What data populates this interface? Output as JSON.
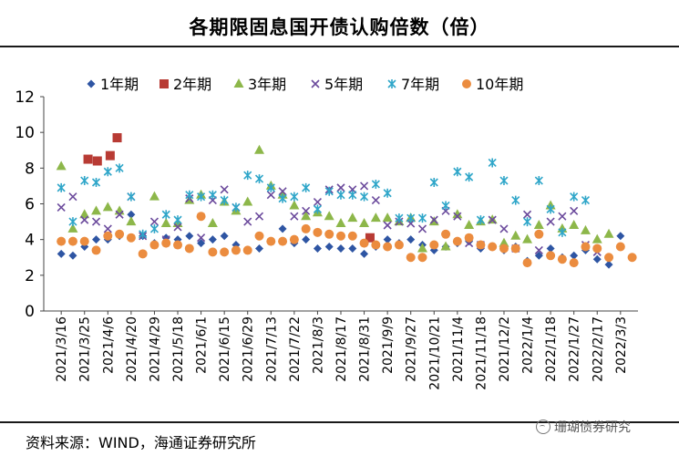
{
  "title": "各期限固息国开债认购倍数（倍）",
  "source": "资料来源：WIND，海通证券研究所",
  "watermark": "珊瑚债券研究",
  "chart_data": {
    "type": "scatter",
    "title": "各期限固息国开债认购倍数（倍）",
    "ylim": [
      0,
      12
    ],
    "yticks": [
      0,
      2,
      4,
      6,
      8,
      10,
      12
    ],
    "x_index_range": [
      0,
      50
    ],
    "x_tick_labels": [
      {
        "i": 1,
        "label": "2021/3/16"
      },
      {
        "i": 3,
        "label": "2021/3/25"
      },
      {
        "i": 5,
        "label": "2021/4/6"
      },
      {
        "i": 7,
        "label": "2021/4/20"
      },
      {
        "i": 9,
        "label": "2021/4/29"
      },
      {
        "i": 11,
        "label": "2021/5/18"
      },
      {
        "i": 13,
        "label": "2021/6/1"
      },
      {
        "i": 15,
        "label": "2021/6/15"
      },
      {
        "i": 17,
        "label": "2021/6/29"
      },
      {
        "i": 19,
        "label": "2021/7/13"
      },
      {
        "i": 21,
        "label": "2021/7/22"
      },
      {
        "i": 23,
        "label": "2021/8/3"
      },
      {
        "i": 25,
        "label": "2021/8/17"
      },
      {
        "i": 27,
        "label": "2021/8/31"
      },
      {
        "i": 29,
        "label": "2021/9/9"
      },
      {
        "i": 31,
        "label": "2021/9/27"
      },
      {
        "i": 33,
        "label": "2021/10/21"
      },
      {
        "i": 35,
        "label": "2021/11/4"
      },
      {
        "i": 37,
        "label": "2021/11/18"
      },
      {
        "i": 39,
        "label": "2021/12/2"
      },
      {
        "i": 41,
        "label": "2022/1/4"
      },
      {
        "i": 43,
        "label": "2022/1/18"
      },
      {
        "i": 45,
        "label": "2022/1/27"
      },
      {
        "i": 47,
        "label": "2022/2/17"
      },
      {
        "i": 49,
        "label": "2022/3/3"
      }
    ],
    "series": [
      {
        "name": "1年期",
        "color": "#2E55A3",
        "marker": "diamond",
        "points": [
          [
            1,
            3.2
          ],
          [
            2,
            3.1
          ],
          [
            3,
            3.6
          ],
          [
            4,
            4.0
          ],
          [
            5,
            4.0
          ],
          [
            6,
            4.2
          ],
          [
            7,
            5.4
          ],
          [
            8,
            4.2
          ],
          [
            9,
            3.8
          ],
          [
            10,
            4.1
          ],
          [
            11,
            4.0
          ],
          [
            12,
            4.2
          ],
          [
            13,
            3.8
          ],
          [
            14,
            4.0
          ],
          [
            15,
            4.2
          ],
          [
            16,
            3.7
          ],
          [
            17,
            3.4
          ],
          [
            18,
            3.5
          ],
          [
            19,
            3.9
          ],
          [
            20,
            4.6
          ],
          [
            21,
            3.8
          ],
          [
            22,
            4.0
          ],
          [
            23,
            3.5
          ],
          [
            24,
            3.6
          ],
          [
            25,
            3.5
          ],
          [
            26,
            3.5
          ],
          [
            27,
            3.2
          ],
          [
            28,
            3.6
          ],
          [
            29,
            4.0
          ],
          [
            30,
            3.8
          ],
          [
            31,
            4.0
          ],
          [
            32,
            3.7
          ],
          [
            33,
            3.4
          ],
          [
            34,
            3.6
          ],
          [
            35,
            3.8
          ],
          [
            36,
            3.9
          ],
          [
            37,
            3.5
          ],
          [
            38,
            3.6
          ],
          [
            39,
            3.4
          ],
          [
            40,
            3.6
          ],
          [
            41,
            2.8
          ],
          [
            42,
            3.1
          ],
          [
            43,
            3.5
          ],
          [
            44,
            3.0
          ],
          [
            45,
            3.1
          ],
          [
            46,
            3.4
          ],
          [
            47,
            2.9
          ],
          [
            48,
            2.6
          ],
          [
            49,
            4.2
          ]
        ]
      },
      {
        "name": "2年期",
        "color": "#B83B34",
        "marker": "square",
        "points": [
          [
            3.3,
            8.5
          ],
          [
            4.1,
            8.4
          ],
          [
            5.2,
            8.7
          ],
          [
            5.8,
            9.7
          ],
          [
            27.5,
            4.1
          ]
        ]
      },
      {
        "name": "3年期",
        "color": "#8DB74A",
        "marker": "triangle",
        "points": [
          [
            1,
            8.1
          ],
          [
            2,
            4.6
          ],
          [
            3,
            5.4
          ],
          [
            4,
            5.6
          ],
          [
            5,
            5.8
          ],
          [
            6,
            5.6
          ],
          [
            7,
            5.0
          ],
          [
            9,
            6.4
          ],
          [
            10,
            4.9
          ],
          [
            11,
            4.9
          ],
          [
            12,
            6.2
          ],
          [
            13,
            6.5
          ],
          [
            14,
            4.9
          ],
          [
            15,
            6.1
          ],
          [
            16,
            5.6
          ],
          [
            17,
            6.1
          ],
          [
            18,
            9.0
          ],
          [
            19,
            7.0
          ],
          [
            20,
            6.5
          ],
          [
            21,
            5.9
          ],
          [
            22,
            5.3
          ],
          [
            23,
            5.5
          ],
          [
            24,
            5.3
          ],
          [
            25,
            4.9
          ],
          [
            26,
            5.2
          ],
          [
            27,
            4.9
          ],
          [
            28,
            5.2
          ],
          [
            29,
            5.2
          ],
          [
            30,
            5.0
          ],
          [
            31,
            5.2
          ],
          [
            32,
            3.5
          ],
          [
            33,
            5.0
          ],
          [
            34,
            3.6
          ],
          [
            35,
            5.4
          ],
          [
            36,
            4.8
          ],
          [
            37,
            5.0
          ],
          [
            38,
            5.1
          ],
          [
            39,
            3.8
          ],
          [
            40,
            4.2
          ],
          [
            41,
            4.0
          ],
          [
            42,
            4.8
          ],
          [
            43,
            5.9
          ],
          [
            44,
            4.6
          ],
          [
            45,
            4.8
          ],
          [
            46,
            4.5
          ],
          [
            47,
            4.0
          ],
          [
            48,
            4.3
          ]
        ]
      },
      {
        "name": "5年期",
        "color": "#6B4A9C",
        "marker": "x",
        "points": [
          [
            1,
            5.8
          ],
          [
            2,
            6.4
          ],
          [
            3,
            5.1
          ],
          [
            4,
            5.0
          ],
          [
            5,
            4.6
          ],
          [
            6,
            5.4
          ],
          [
            7,
            6.4
          ],
          [
            8,
            4.2
          ],
          [
            9,
            5.0
          ],
          [
            10,
            4.0
          ],
          [
            11,
            4.7
          ],
          [
            12,
            6.3
          ],
          [
            13,
            4.1
          ],
          [
            14,
            6.2
          ],
          [
            15,
            6.8
          ],
          [
            16,
            5.8
          ],
          [
            17,
            5.0
          ],
          [
            18,
            5.3
          ],
          [
            19,
            6.5
          ],
          [
            20,
            6.7
          ],
          [
            21,
            5.3
          ],
          [
            22,
            5.6
          ],
          [
            23,
            6.1
          ],
          [
            24,
            6.8
          ],
          [
            25,
            6.9
          ],
          [
            26,
            6.8
          ],
          [
            27,
            7.0
          ],
          [
            28,
            6.2
          ],
          [
            29,
            4.8
          ],
          [
            30,
            5.0
          ],
          [
            31,
            4.9
          ],
          [
            32,
            4.6
          ],
          [
            33,
            5.1
          ],
          [
            34,
            5.6
          ],
          [
            35,
            5.3
          ],
          [
            36,
            3.8
          ],
          [
            37,
            3.7
          ],
          [
            38,
            5.1
          ],
          [
            39,
            4.6
          ],
          [
            40,
            3.5
          ],
          [
            41,
            5.4
          ],
          [
            42,
            3.4
          ],
          [
            43,
            5.0
          ],
          [
            44,
            5.3
          ],
          [
            45,
            5.6
          ],
          [
            46,
            3.7
          ],
          [
            47,
            3.3
          ]
        ]
      },
      {
        "name": "7年期",
        "color": "#2FA6C9",
        "marker": "star",
        "points": [
          [
            1,
            6.9
          ],
          [
            2,
            5.0
          ],
          [
            3,
            7.3
          ],
          [
            4,
            7.2
          ],
          [
            5,
            7.8
          ],
          [
            6,
            8.0
          ],
          [
            7,
            6.4
          ],
          [
            8,
            4.3
          ],
          [
            9,
            4.6
          ],
          [
            10,
            5.4
          ],
          [
            11,
            5.1
          ],
          [
            12,
            6.5
          ],
          [
            13,
            6.4
          ],
          [
            14,
            6.5
          ],
          [
            15,
            6.2
          ],
          [
            16,
            5.8
          ],
          [
            17,
            7.6
          ],
          [
            18,
            7.4
          ],
          [
            19,
            6.9
          ],
          [
            20,
            6.3
          ],
          [
            21,
            6.4
          ],
          [
            22,
            6.9
          ],
          [
            23,
            5.7
          ],
          [
            24,
            6.7
          ],
          [
            25,
            6.5
          ],
          [
            26,
            6.5
          ],
          [
            27,
            6.4
          ],
          [
            28,
            7.1
          ],
          [
            29,
            6.6
          ],
          [
            30,
            5.2
          ],
          [
            31,
            5.2
          ],
          [
            32,
            5.2
          ],
          [
            33,
            7.2
          ],
          [
            34,
            5.9
          ],
          [
            35,
            7.8
          ],
          [
            36,
            7.5
          ],
          [
            37,
            5.1
          ],
          [
            38,
            8.3
          ],
          [
            39,
            7.3
          ],
          [
            40,
            6.2
          ],
          [
            41,
            5.0
          ],
          [
            42,
            7.3
          ],
          [
            43,
            5.7
          ],
          [
            44,
            4.4
          ],
          [
            45,
            6.4
          ],
          [
            46,
            6.2
          ]
        ]
      },
      {
        "name": "10年期",
        "color": "#EB8C3F",
        "marker": "circle",
        "points": [
          [
            1,
            3.9
          ],
          [
            2,
            3.9
          ],
          [
            3,
            3.9
          ],
          [
            4,
            3.4
          ],
          [
            5,
            4.2
          ],
          [
            6,
            4.3
          ],
          [
            7,
            4.1
          ],
          [
            8,
            3.2
          ],
          [
            9,
            3.7
          ],
          [
            10,
            3.8
          ],
          [
            11,
            3.7
          ],
          [
            12,
            3.5
          ],
          [
            13,
            5.3
          ],
          [
            14,
            3.3
          ],
          [
            15,
            3.3
          ],
          [
            16,
            3.4
          ],
          [
            17,
            3.4
          ],
          [
            18,
            4.2
          ],
          [
            19,
            3.9
          ],
          [
            20,
            3.9
          ],
          [
            21,
            4.0
          ],
          [
            22,
            4.6
          ],
          [
            23,
            4.4
          ],
          [
            24,
            4.3
          ],
          [
            25,
            4.2
          ],
          [
            26,
            4.2
          ],
          [
            27,
            3.8
          ],
          [
            28,
            3.7
          ],
          [
            29,
            3.6
          ],
          [
            30,
            3.7
          ],
          [
            31,
            3.0
          ],
          [
            32,
            3.0
          ],
          [
            33,
            3.7
          ],
          [
            34,
            4.3
          ],
          [
            35,
            3.9
          ],
          [
            36,
            4.1
          ],
          [
            37,
            3.7
          ],
          [
            38,
            3.6
          ],
          [
            39,
            3.5
          ],
          [
            40,
            3.5
          ],
          [
            41,
            2.7
          ],
          [
            42,
            4.3
          ],
          [
            43,
            3.1
          ],
          [
            44,
            2.9
          ],
          [
            45,
            2.7
          ],
          [
            46,
            3.6
          ],
          [
            47,
            3.5
          ],
          [
            48,
            3.0
          ],
          [
            49,
            3.6
          ],
          [
            50,
            3.0
          ]
        ]
      }
    ]
  }
}
